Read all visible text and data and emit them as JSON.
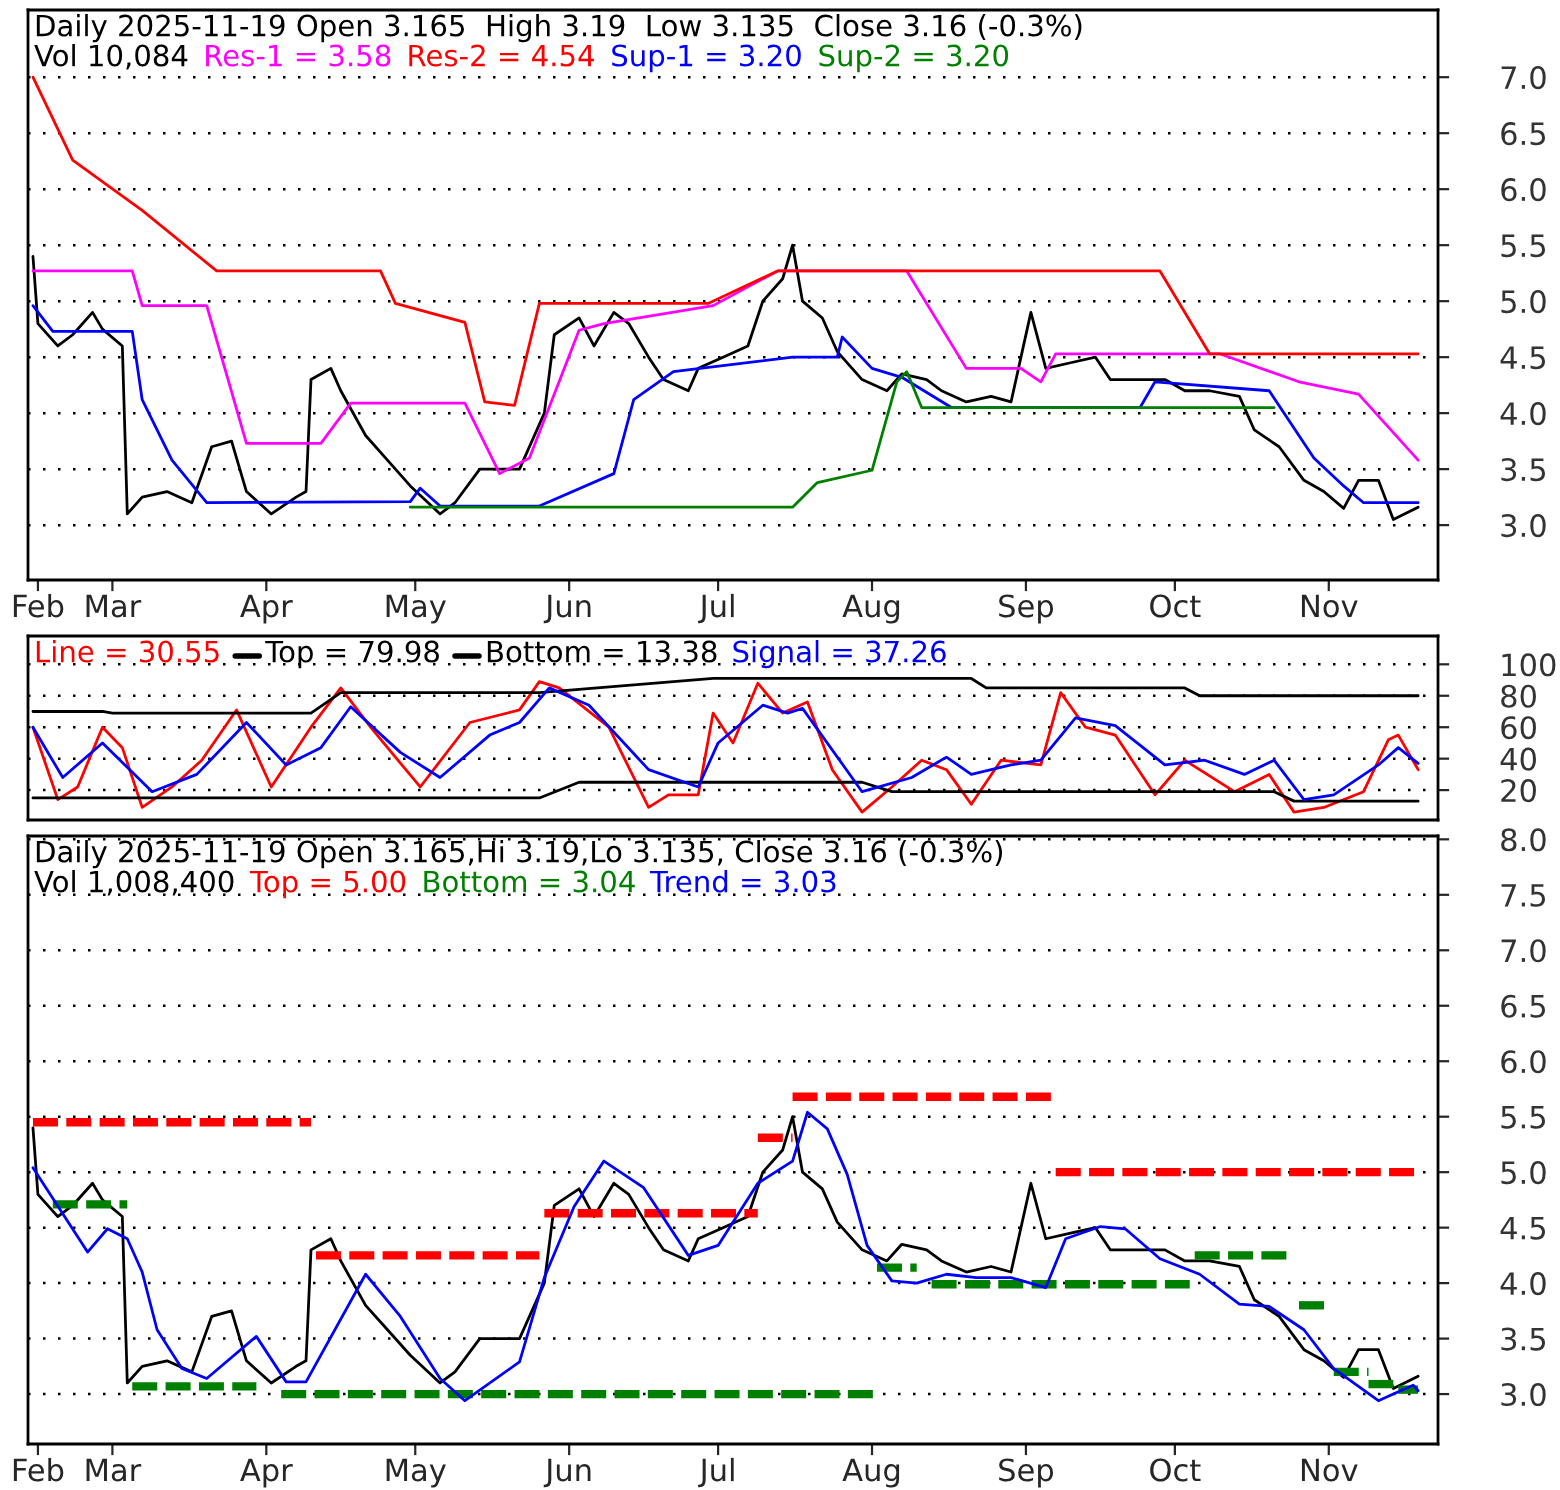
{
  "chart_data": [
    {
      "type": "line",
      "title": "Daily 2025-11-19 Open 3.165  High 3.19  Low 3.135  Close 3.16 (-0.3%)",
      "annotations": [
        "Vol 10,084"
      ],
      "legend": "top left",
      "grid": "y",
      "xlim": [
        "2025-02-12",
        "2025-11-23"
      ],
      "ylim": [
        2.51,
        7.6
      ],
      "xticks": [
        {
          "value": "2025-02-14",
          "label": "Feb"
        },
        {
          "value": "2025-03-01",
          "label": "Mar"
        },
        {
          "value": "2025-04-01",
          "label": "Apr"
        },
        {
          "value": "2025-05-01",
          "label": "May"
        },
        {
          "value": "2025-06-01",
          "label": "Jun"
        },
        {
          "value": "2025-07-01",
          "label": "Jul"
        },
        {
          "value": "2025-08-01",
          "label": "Aug"
        },
        {
          "value": "2025-09-01",
          "label": "Sep"
        },
        {
          "value": "2025-10-01",
          "label": "Oct"
        },
        {
          "value": "2025-11-01",
          "label": "Nov"
        }
      ],
      "yticks": [
        {
          "value": 3,
          "label": "3.0"
        },
        {
          "value": 3.5,
          "label": "3.5"
        },
        {
          "value": 4,
          "label": "4.0"
        },
        {
          "value": 4.5,
          "label": "4.5"
        },
        {
          "value": 5,
          "label": "5.0"
        },
        {
          "value": 5.5,
          "label": "5.5"
        },
        {
          "value": 6,
          "label": "6.0"
        },
        {
          "value": 6.5,
          "label": "6.5"
        },
        {
          "value": 7,
          "label": "7.0"
        }
      ],
      "series": [
        {
          "color": "#000000",
          "x": [
            "2025-02-13",
            "2025-02-14",
            "2025-02-18",
            "2025-02-21",
            "2025-02-25",
            "2025-02-27",
            "2025-03-03",
            "2025-03-04",
            "2025-03-07",
            "2025-03-12",
            "2025-03-17",
            "2025-03-21",
            "2025-03-25",
            "2025-03-28",
            "2025-04-02",
            "2025-04-07",
            "2025-04-09",
            "2025-04-10",
            "2025-04-14",
            "2025-04-16",
            "2025-04-21",
            "2025-04-25",
            "2025-04-30",
            "2025-05-06",
            "2025-05-09",
            "2025-05-14",
            "2025-05-19",
            "2025-05-22",
            "2025-05-27",
            "2025-05-29",
            "2025-06-03",
            "2025-06-06",
            "2025-06-10",
            "2025-06-13",
            "2025-06-17",
            "2025-06-20",
            "2025-06-25",
            "2025-06-27",
            "2025-07-02",
            "2025-07-07",
            "2025-07-10",
            "2025-07-14",
            "2025-07-16",
            "2025-07-18",
            "2025-07-22",
            "2025-07-25",
            "2025-07-30",
            "2025-08-04",
            "2025-08-07",
            "2025-08-12",
            "2025-08-15",
            "2025-08-20",
            "2025-08-25",
            "2025-08-29",
            "2025-09-02",
            "2025-09-05",
            "2025-09-10",
            "2025-09-15",
            "2025-09-18",
            "2025-09-23",
            "2025-09-29",
            "2025-10-03",
            "2025-10-08",
            "2025-10-14",
            "2025-10-17",
            "2025-10-22",
            "2025-10-27",
            "2025-10-31",
            "2025-11-04",
            "2025-11-07",
            "2025-11-11",
            "2025-11-14",
            "2025-11-19"
          ],
          "values": [
            5.4,
            4.8,
            4.6,
            4.7,
            4.9,
            4.75,
            4.6,
            3.1,
            3.25,
            3.3,
            3.2,
            3.7,
            3.75,
            3.3,
            3.1,
            3.25,
            3.3,
            4.3,
            4.4,
            4.2,
            3.8,
            3.6,
            3.35,
            3.1,
            3.2,
            3.5,
            3.5,
            3.5,
            4.0,
            4.7,
            4.85,
            4.6,
            4.9,
            4.8,
            4.5,
            4.3,
            4.2,
            4.4,
            4.5,
            4.6,
            5.0,
            5.2,
            5.5,
            5.0,
            4.85,
            4.55,
            4.3,
            4.2,
            4.35,
            4.3,
            4.2,
            4.1,
            4.15,
            4.1,
            4.9,
            4.4,
            4.45,
            4.5,
            4.3,
            4.3,
            4.3,
            4.2,
            4.2,
            4.15,
            3.85,
            3.7,
            3.4,
            3.3,
            3.15,
            3.4,
            3.4,
            3.05,
            3.16
          ]
        },
        {
          "name": "Res-1 = 3.58",
          "color": "#ff00ff",
          "x": [
            "2025-02-13",
            "2025-03-05",
            "2025-03-07",
            "2025-03-20",
            "2025-03-28",
            "2025-04-12",
            "2025-04-18",
            "2025-05-11",
            "2025-05-18",
            "2025-05-24",
            "2025-06-03",
            "2025-06-08",
            "2025-06-30",
            "2025-07-13",
            "2025-08-08",
            "2025-08-20",
            "2025-08-31",
            "2025-09-04",
            "2025-09-07",
            "2025-10-10",
            "2025-10-26",
            "2025-11-07",
            "2025-11-19"
          ],
          "values": [
            5.27,
            5.27,
            4.96,
            4.96,
            3.73,
            3.73,
            4.09,
            4.09,
            3.46,
            3.6,
            4.74,
            4.8,
            4.96,
            5.27,
            5.27,
            4.4,
            4.4,
            4.28,
            4.53,
            4.53,
            4.28,
            4.17,
            3.58
          ]
        },
        {
          "name": "Res-2 = 4.54",
          "color": "#ff0000",
          "x": [
            "2025-02-13",
            "2025-02-21",
            "2025-03-07",
            "2025-03-22",
            "2025-04-24",
            "2025-04-27",
            "2025-05-11",
            "2025-05-15",
            "2025-05-21",
            "2025-05-26",
            "2025-06-29",
            "2025-07-13",
            "2025-09-28",
            "2025-10-08",
            "2025-11-19"
          ],
          "values": [
            7.0,
            6.26,
            5.81,
            5.27,
            5.27,
            4.98,
            4.81,
            4.1,
            4.07,
            4.98,
            4.98,
            5.27,
            5.27,
            4.53,
            4.53
          ]
        },
        {
          "name": "Sup-1 = 3.20",
          "color": "#0000ff",
          "x": [
            "2025-02-13",
            "2025-02-17",
            "2025-03-05",
            "2025-03-07",
            "2025-03-13",
            "2025-03-20",
            "2025-04-30",
            "2025-05-02",
            "2025-05-06",
            "2025-05-26",
            "2025-06-10",
            "2025-06-14",
            "2025-06-22",
            "2025-07-16",
            "2025-07-25",
            "2025-07-26",
            "2025-08-01",
            "2025-08-07",
            "2025-08-17",
            "2025-09-24",
            "2025-09-27",
            "2025-10-20",
            "2025-10-29",
            "2025-11-04",
            "2025-11-08",
            "2025-11-19"
          ],
          "values": [
            4.96,
            4.73,
            4.73,
            4.12,
            3.58,
            3.2,
            3.21,
            3.33,
            3.17,
            3.17,
            3.46,
            4.12,
            4.37,
            4.5,
            4.5,
            4.68,
            4.4,
            4.32,
            4.05,
            4.05,
            4.28,
            4.2,
            3.6,
            3.35,
            3.2,
            3.2
          ]
        },
        {
          "name": "Sup-2 = 3.20",
          "color": "#008000",
          "x": [
            "2025-04-30",
            "2025-07-16",
            "2025-07-21",
            "2025-08-01",
            "2025-08-06",
            "2025-08-08",
            "2025-08-11",
            "2025-10-21"
          ],
          "values": [
            3.16,
            3.16,
            3.38,
            3.49,
            4.28,
            4.37,
            4.05,
            4.05
          ]
        }
      ]
    },
    {
      "type": "line",
      "legend": "top left",
      "grid": "y",
      "tick_labels": "y",
      "xlim": [
        "2025-02-12",
        "2025-11-23"
      ],
      "ylim": [
        1,
        118
      ],
      "yticks": [
        20,
        40,
        60,
        80,
        100
      ],
      "series": [
        {
          "name": "Line = 30.55",
          "color": "#ff0000",
          "x": [
            "2025-02-13",
            "2025-02-18",
            "2025-02-22",
            "2025-02-27",
            "2025-03-03",
            "2025-03-07",
            "2025-03-13",
            "2025-03-19",
            "2025-03-26",
            "2025-04-02",
            "2025-04-10",
            "2025-04-16",
            "2025-04-22",
            "2025-05-02",
            "2025-05-12",
            "2025-05-22",
            "2025-05-26",
            "2025-05-30",
            "2025-06-09",
            "2025-06-17",
            "2025-06-21",
            "2025-06-27",
            "2025-06-30",
            "2025-07-04",
            "2025-07-09",
            "2025-07-14",
            "2025-07-19",
            "2025-07-24",
            "2025-07-30",
            "2025-08-05",
            "2025-08-11",
            "2025-08-16",
            "2025-08-21",
            "2025-08-27",
            "2025-09-04",
            "2025-09-08",
            "2025-09-13",
            "2025-09-19",
            "2025-09-27",
            "2025-10-03",
            "2025-10-13",
            "2025-10-20",
            "2025-10-25",
            "2025-10-31",
            "2025-11-08",
            "2025-11-13",
            "2025-11-15",
            "2025-11-19"
          ],
          "values": [
            60,
            14,
            22,
            60,
            47,
            9,
            22,
            39,
            71,
            22,
            60,
            85,
            60,
            22,
            63,
            71,
            89,
            85,
            60,
            9,
            17,
            17,
            69,
            50,
            88,
            69,
            76,
            33,
            6,
            22,
            39,
            33,
            11,
            39,
            36,
            82,
            60,
            55,
            17,
            39,
            19,
            30,
            6,
            9,
            19,
            52,
            55,
            33
          ]
        },
        {
          "name": "Top = 79.98",
          "color": "#000000",
          "x": [
            "2025-02-13",
            "2025-02-27",
            "2025-03-01",
            "2025-04-10",
            "2025-04-16",
            "2025-05-26",
            "2025-06-30",
            "2025-08-21",
            "2025-08-24",
            "2025-10-03",
            "2025-10-06",
            "2025-11-19"
          ],
          "values": [
            70,
            70,
            69,
            69,
            82,
            82,
            91,
            91,
            85,
            85,
            80,
            80
          ]
        },
        {
          "name": "Bottom = 13.38",
          "color": "#000000",
          "x": [
            "2025-02-13",
            "2025-05-26",
            "2025-06-03",
            "2025-07-30",
            "2025-08-05",
            "2025-10-21",
            "2025-10-25",
            "2025-11-19"
          ],
          "values": [
            15,
            15,
            25,
            25,
            19,
            19,
            13,
            13
          ]
        },
        {
          "name": "Signal = 37.26",
          "color": "#0000ff",
          "x": [
            "2025-02-13",
            "2025-02-19",
            "2025-02-27",
            "2025-03-09",
            "2025-03-18",
            "2025-03-28",
            "2025-04-05",
            "2025-04-12",
            "2025-04-18",
            "2025-04-28",
            "2025-05-06",
            "2025-05-16",
            "2025-05-22",
            "2025-05-28",
            "2025-06-05",
            "2025-06-17",
            "2025-06-27",
            "2025-07-01",
            "2025-07-10",
            "2025-07-15",
            "2025-07-18",
            "2025-07-30",
            "2025-08-09",
            "2025-08-16",
            "2025-08-21",
            "2025-08-29",
            "2025-09-04",
            "2025-09-11",
            "2025-09-19",
            "2025-09-29",
            "2025-10-07",
            "2025-10-15",
            "2025-10-21",
            "2025-10-27",
            "2025-11-02",
            "2025-11-11",
            "2025-11-15",
            "2025-11-19"
          ],
          "values": [
            60,
            28,
            50,
            19,
            30,
            63,
            36,
            47,
            73,
            44,
            28,
            55,
            63,
            85,
            74,
            33,
            22,
            50,
            74,
            69,
            72,
            19,
            28,
            41,
            30,
            36,
            39,
            66,
            61,
            36,
            39,
            30,
            39,
            14,
            17,
            36,
            47,
            37
          ]
        }
      ]
    },
    {
      "type": "line",
      "title": "Daily 2025-11-19 Open 3.165,Hi 3.19,Lo 3.135, Close 3.16 (-0.3%)",
      "annotations": [
        "Vol 1,008,400"
      ],
      "legend": "top left",
      "grid": "y",
      "xlim": [
        "2025-02-12",
        "2025-11-23"
      ],
      "ylim": [
        2.55,
        8.03
      ],
      "xticks": [
        {
          "value": "2025-02-14",
          "label": "Feb"
        },
        {
          "value": "2025-03-01",
          "label": "Mar"
        },
        {
          "value": "2025-04-01",
          "label": "Apr"
        },
        {
          "value": "2025-05-01",
          "label": "May"
        },
        {
          "value": "2025-06-01",
          "label": "Jun"
        },
        {
          "value": "2025-07-01",
          "label": "Jul"
        },
        {
          "value": "2025-08-01",
          "label": "Aug"
        },
        {
          "value": "2025-09-01",
          "label": "Sep"
        },
        {
          "value": "2025-10-01",
          "label": "Oct"
        },
        {
          "value": "2025-11-01",
          "label": "Nov"
        }
      ],
      "yticks": [
        {
          "value": 3,
          "label": "3.0"
        },
        {
          "value": 3.5,
          "label": "3.5"
        },
        {
          "value": 4,
          "label": "4.0"
        },
        {
          "value": 4.5,
          "label": "4.5"
        },
        {
          "value": 5,
          "label": "5.0"
        },
        {
          "value": 5.5,
          "label": "5.5"
        },
        {
          "value": 6,
          "label": "6.0"
        },
        {
          "value": 6.5,
          "label": "6.5"
        },
        {
          "value": 7,
          "label": "7.0"
        },
        {
          "value": 7.5,
          "label": "7.5"
        },
        {
          "value": 8,
          "label": "8.0"
        }
      ],
      "series": [
        {
          "color": "#000000",
          "x": [
            "2025-02-13",
            "2025-02-14",
            "2025-02-18",
            "2025-02-21",
            "2025-02-25",
            "2025-02-27",
            "2025-03-03",
            "2025-03-04",
            "2025-03-07",
            "2025-03-12",
            "2025-03-17",
            "2025-03-21",
            "2025-03-25",
            "2025-03-28",
            "2025-04-02",
            "2025-04-07",
            "2025-04-09",
            "2025-04-10",
            "2025-04-14",
            "2025-04-16",
            "2025-04-21",
            "2025-04-25",
            "2025-04-30",
            "2025-05-06",
            "2025-05-09",
            "2025-05-14",
            "2025-05-19",
            "2025-05-22",
            "2025-05-27",
            "2025-05-29",
            "2025-06-03",
            "2025-06-06",
            "2025-06-10",
            "2025-06-13",
            "2025-06-17",
            "2025-06-20",
            "2025-06-25",
            "2025-06-27",
            "2025-07-02",
            "2025-07-07",
            "2025-07-10",
            "2025-07-14",
            "2025-07-16",
            "2025-07-18",
            "2025-07-22",
            "2025-07-25",
            "2025-07-30",
            "2025-08-04",
            "2025-08-07",
            "2025-08-12",
            "2025-08-15",
            "2025-08-20",
            "2025-08-25",
            "2025-08-29",
            "2025-09-02",
            "2025-09-05",
            "2025-09-10",
            "2025-09-15",
            "2025-09-18",
            "2025-09-23",
            "2025-09-29",
            "2025-10-03",
            "2025-10-08",
            "2025-10-14",
            "2025-10-17",
            "2025-10-22",
            "2025-10-27",
            "2025-10-31",
            "2025-11-04",
            "2025-11-07",
            "2025-11-11",
            "2025-11-14",
            "2025-11-19"
          ],
          "values": [
            5.4,
            4.8,
            4.6,
            4.7,
            4.9,
            4.75,
            4.6,
            3.1,
            3.25,
            3.3,
            3.2,
            3.7,
            3.75,
            3.3,
            3.1,
            3.25,
            3.3,
            4.3,
            4.4,
            4.2,
            3.8,
            3.6,
            3.35,
            3.1,
            3.2,
            3.5,
            3.5,
            3.5,
            4.0,
            4.7,
            4.85,
            4.6,
            4.9,
            4.8,
            4.5,
            4.3,
            4.2,
            4.4,
            4.5,
            4.6,
            5.0,
            5.2,
            5.5,
            5.0,
            4.85,
            4.55,
            4.3,
            4.2,
            4.35,
            4.3,
            4.2,
            4.1,
            4.15,
            4.1,
            4.9,
            4.4,
            4.45,
            4.5,
            4.3,
            4.3,
            4.3,
            4.2,
            4.2,
            4.15,
            3.85,
            3.7,
            3.4,
            3.3,
            3.15,
            3.4,
            3.4,
            3.05,
            3.16
          ]
        },
        {
          "color": "#ff0000",
          "line_style": "dashed",
          "x": [
            "2025-02-13",
            "2025-04-10"
          ],
          "values": [
            5.45,
            5.45
          ]
        },
        {
          "color": "#ff0000",
          "line_style": "dashed",
          "x": [
            "2025-04-11",
            "2025-05-26"
          ],
          "values": [
            4.25,
            4.25
          ]
        },
        {
          "color": "#ff0000",
          "line_style": "dashed",
          "x": [
            "2025-05-27",
            "2025-07-09"
          ],
          "values": [
            4.63,
            4.63
          ]
        },
        {
          "color": "#ff0000",
          "line_style": "dashed",
          "x": [
            "2025-07-09",
            "2025-07-16"
          ],
          "values": [
            5.31,
            5.31
          ]
        },
        {
          "color": "#ff0000",
          "line_style": "dashed",
          "x": [
            "2025-07-16",
            "2025-09-07"
          ],
          "values": [
            5.68,
            5.68
          ]
        },
        {
          "name": "Top = 5.00",
          "color": "#ff0000",
          "line_style": "dashed",
          "x": [
            "2025-09-07",
            "2025-11-19"
          ],
          "values": [
            5.0,
            5.0
          ]
        },
        {
          "color": "#008000",
          "line_style": "dashed",
          "x": [
            "2025-02-17",
            "2025-03-04"
          ],
          "values": [
            4.71,
            4.71
          ]
        },
        {
          "color": "#008000",
          "line_style": "dashed",
          "x": [
            "2025-03-05",
            "2025-03-30"
          ],
          "values": [
            3.07,
            3.07
          ]
        },
        {
          "color": "#008000",
          "line_style": "dashed",
          "x": [
            "2025-04-04",
            "2025-08-02"
          ],
          "values": [
            3.0,
            3.0
          ]
        },
        {
          "color": "#008000",
          "line_style": "dashed",
          "x": [
            "2025-08-02",
            "2025-08-10"
          ],
          "values": [
            4.14,
            4.14
          ]
        },
        {
          "color": "#008000",
          "line_style": "dashed",
          "x": [
            "2025-08-13",
            "2025-10-04"
          ],
          "values": [
            3.99,
            3.99
          ]
        },
        {
          "color": "#008000",
          "line_style": "dashed",
          "x": [
            "2025-10-05",
            "2025-10-24"
          ],
          "values": [
            4.25,
            4.25
          ]
        },
        {
          "color": "#008000",
          "line_style": "dashed",
          "x": [
            "2025-10-26",
            "2025-11-01"
          ],
          "values": [
            3.8,
            3.8
          ]
        },
        {
          "color": "#008000",
          "line_style": "dashed",
          "x": [
            "2025-11-02",
            "2025-11-09"
          ],
          "values": [
            3.2,
            3.2
          ]
        },
        {
          "color": "#008000",
          "line_style": "dashed",
          "x": [
            "2025-11-09",
            "2025-11-14"
          ],
          "values": [
            3.09,
            3.09
          ]
        },
        {
          "name": "Bottom = 3.04",
          "color": "#008000",
          "line_style": "dashed",
          "x": [
            "2025-11-15",
            "2025-11-19"
          ],
          "values": [
            3.04,
            3.04
          ]
        },
        {
          "name": "Trend = 3.03",
          "color": "#0000ff",
          "x": [
            "2025-02-13",
            "2025-02-24",
            "2025-02-28",
            "2025-03-04",
            "2025-03-07",
            "2025-03-10",
            "2025-03-15",
            "2025-03-20",
            "2025-03-30",
            "2025-04-05",
            "2025-04-09",
            "2025-04-21",
            "2025-04-28",
            "2025-05-06",
            "2025-05-11",
            "2025-05-22",
            "2025-05-27",
            "2025-06-02",
            "2025-06-08",
            "2025-06-16",
            "2025-06-25",
            "2025-07-01",
            "2025-07-09",
            "2025-07-16",
            "2025-07-19",
            "2025-07-23",
            "2025-07-27",
            "2025-07-31",
            "2025-08-05",
            "2025-08-10",
            "2025-08-16",
            "2025-08-22",
            "2025-08-29",
            "2025-09-05",
            "2025-09-09",
            "2025-09-16",
            "2025-09-21",
            "2025-09-28",
            "2025-10-06",
            "2025-10-14",
            "2025-10-20",
            "2025-10-27",
            "2025-11-02",
            "2025-11-11",
            "2025-11-14",
            "2025-11-18",
            "2025-11-19"
          ],
          "values": [
            5.04,
            4.28,
            4.49,
            4.4,
            4.1,
            3.58,
            3.23,
            3.14,
            3.52,
            3.11,
            3.11,
            4.08,
            3.7,
            3.14,
            2.94,
            3.29,
            4.05,
            4.69,
            5.1,
            4.86,
            4.25,
            4.34,
            4.9,
            5.1,
            5.54,
            5.39,
            4.98,
            4.34,
            4.02,
            4.0,
            4.08,
            4.05,
            4.05,
            3.96,
            4.4,
            4.51,
            4.49,
            4.22,
            4.08,
            3.81,
            3.79,
            3.58,
            3.23,
            2.94,
            3.0,
            3.08,
            3.03
          ]
        }
      ]
    }
  ]
}
